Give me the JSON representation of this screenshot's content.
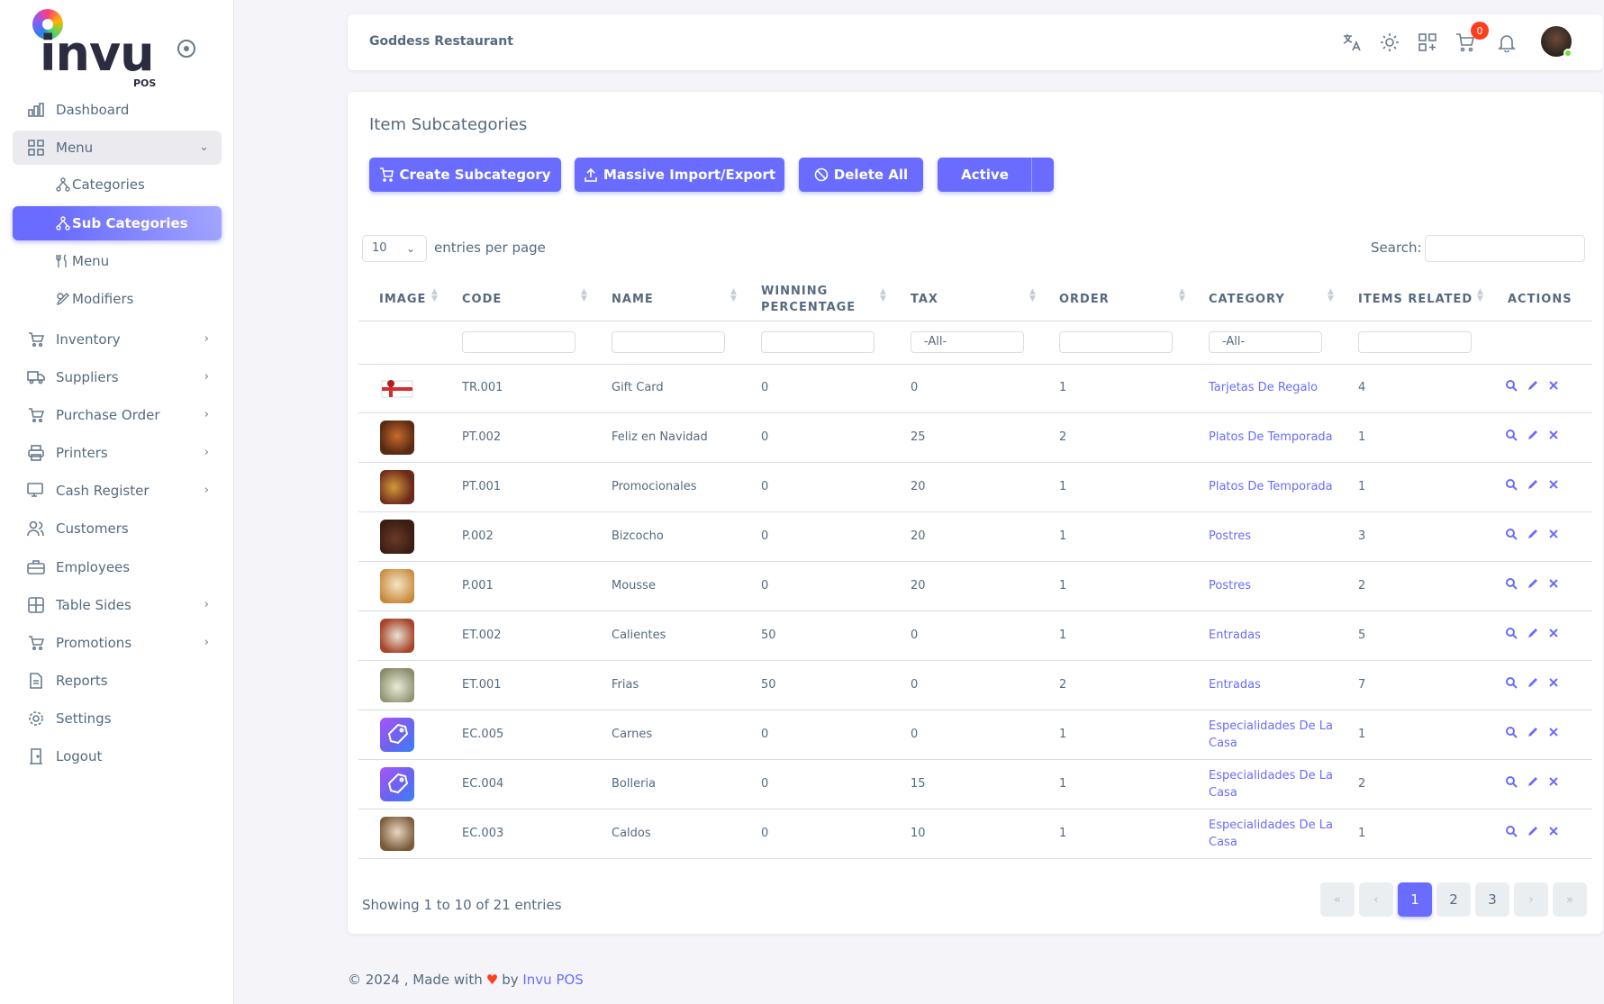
{
  "app": {
    "brand": "invu",
    "brand_sub": "POS"
  },
  "sidebar": {
    "items": [
      {
        "label": "Dashboard",
        "icon": "chart-icon"
      },
      {
        "label": "Menu",
        "icon": "grid-icon"
      },
      {
        "label": "Inventory",
        "icon": "cart-icon"
      },
      {
        "label": "Suppliers",
        "icon": "truck-icon"
      },
      {
        "label": "Purchase Order",
        "icon": "cart-icon"
      },
      {
        "label": "Printers",
        "icon": "printer-icon"
      },
      {
        "label": "Cash Register",
        "icon": "register-icon"
      },
      {
        "label": "Customers",
        "icon": "users-icon"
      },
      {
        "label": "Employees",
        "icon": "briefcase-icon"
      },
      {
        "label": "Table Sides",
        "icon": "table-icon"
      },
      {
        "label": "Promotions",
        "icon": "cart-icon"
      },
      {
        "label": "Reports",
        "icon": "file-icon"
      },
      {
        "label": "Settings",
        "icon": "gear-icon"
      },
      {
        "label": "Logout",
        "icon": "door-icon"
      }
    ],
    "menu_sub": [
      {
        "label": "Categories"
      },
      {
        "label": "Sub Categories"
      },
      {
        "label": "Menu"
      },
      {
        "label": "Modifiers"
      }
    ]
  },
  "header": {
    "restaurant": "Goddess Restaurant",
    "cart_count": "0"
  },
  "page": {
    "title": "Item Subcategories",
    "buttons": {
      "create": "Create Subcategory",
      "import": "Massive Import/Export",
      "delete": "Delete All",
      "active": "Active"
    },
    "entries_value": "10",
    "entries_label": "entries per page",
    "search_label": "Search:"
  },
  "table": {
    "headers": [
      "IMAGE",
      "CODE",
      "NAME",
      "WINNING PERCENTAGE",
      "TAX",
      "ORDER",
      "CATEGORY",
      "ITEMS RELATED",
      "ACTIONS"
    ],
    "filter_all": "-All-",
    "rows": [
      {
        "code": "TR.001",
        "name": "Gift Card",
        "winning": "0",
        "tax": "0",
        "order": "1",
        "category": "Tarjetas De Regalo",
        "items": "4"
      },
      {
        "code": "PT.002",
        "name": "Feliz en Navidad",
        "winning": "0",
        "tax": "25",
        "order": "2",
        "category": "Platos De Temporada",
        "items": "1"
      },
      {
        "code": "PT.001",
        "name": "Promocionales",
        "winning": "0",
        "tax": "20",
        "order": "1",
        "category": "Platos De Temporada",
        "items": "1"
      },
      {
        "code": "P.002",
        "name": "Bizcocho",
        "winning": "0",
        "tax": "20",
        "order": "1",
        "category": "Postres",
        "items": "3"
      },
      {
        "code": "P.001",
        "name": "Mousse",
        "winning": "0",
        "tax": "20",
        "order": "1",
        "category": "Postres",
        "items": "2"
      },
      {
        "code": "ET.002",
        "name": "Calientes",
        "winning": "50",
        "tax": "0",
        "order": "1",
        "category": "Entradas",
        "items": "5"
      },
      {
        "code": "ET.001",
        "name": "Frias",
        "winning": "50",
        "tax": "0",
        "order": "2",
        "category": "Entradas",
        "items": "7"
      },
      {
        "code": "EC.005",
        "name": "Carnes",
        "winning": "0",
        "tax": "0",
        "order": "1",
        "category": "Especialidades De La Casa",
        "items": "1"
      },
      {
        "code": "EC.004",
        "name": "Bolleria",
        "winning": "0",
        "tax": "15",
        "order": "1",
        "category": "Especialidades De La Casa",
        "items": "2"
      },
      {
        "code": "EC.003",
        "name": "Caldos",
        "winning": "0",
        "tax": "10",
        "order": "1",
        "category": "Especialidades De La Casa",
        "items": "1"
      }
    ]
  },
  "pagination": {
    "showing": "Showing 1 to 10 of 21 entries",
    "first": "«",
    "prev": "‹",
    "pages": [
      "1",
      "2",
      "3"
    ],
    "next": "›",
    "last": "»"
  },
  "footer": {
    "prefix": "© 2024 , Made with",
    "by": "by",
    "brand": "Invu POS"
  }
}
